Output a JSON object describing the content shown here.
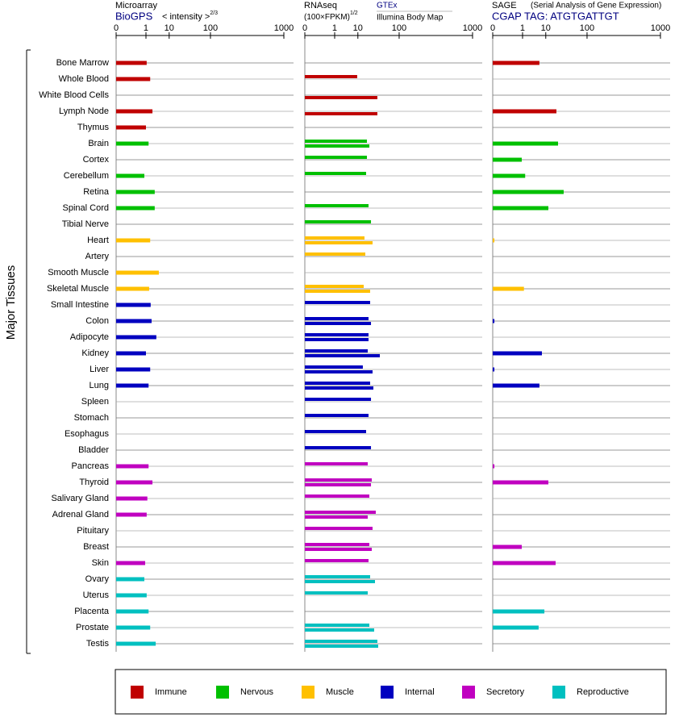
{
  "tissues": {
    "label": "Major Tissues",
    "categories": [
      "Bone Marrow",
      "Whole Blood",
      "White Blood Cells",
      "Lymph Node",
      "Thymus",
      "Brain",
      "Cortex",
      "Cerebellum",
      "Retina",
      "Spinal Cord",
      "Tibial Nerve",
      "Heart",
      "Artery",
      "Smooth Muscle",
      "Skeletal Muscle",
      "Small Intestine",
      "Colon",
      "Adipocyte",
      "Kidney",
      "Liver",
      "Lung",
      "Spleen",
      "Stomach",
      "Esophagus",
      "Bladder",
      "Pancreas",
      "Thyroid",
      "Salivary Gland",
      "Adrenal Gland",
      "Pituitary",
      "Breast",
      "Skin",
      "Ovary",
      "Uterus",
      "Placenta",
      "Prostate",
      "Testis"
    ],
    "group": [
      0,
      0,
      0,
      0,
      0,
      1,
      1,
      1,
      1,
      1,
      1,
      2,
      2,
      2,
      2,
      3,
      3,
      3,
      3,
      3,
      3,
      3,
      3,
      3,
      3,
      4,
      4,
      4,
      4,
      4,
      4,
      4,
      5,
      5,
      5,
      5,
      5
    ]
  },
  "groups": [
    {
      "name": "Immune",
      "color": "#c00000"
    },
    {
      "name": "Nervous",
      "color": "#00c000"
    },
    {
      "name": "Muscle",
      "color": "#ffc000"
    },
    {
      "name": "Internal",
      "color": "#0000c0"
    },
    {
      "name": "Secretory",
      "color": "#c000c0"
    },
    {
      "name": "Reproductive",
      "color": "#00c0c0"
    }
  ],
  "chart_data": [
    {
      "type": "bar",
      "title": "Microarray",
      "x_label": "< intensity >",
      "x_label_exponent": "2/3",
      "xlim": [
        0,
        1000
      ],
      "xticks": [
        0,
        1,
        10,
        100,
        1000
      ],
      "xscale": "power",
      "xexponent": 0.25,
      "series": [
        {
          "name": "BioGPS",
          "values": [
            1.1,
            1.7,
            null,
            2.2,
            1.0,
            1.4,
            null,
            0.8,
            2.8,
            2.8,
            null,
            1.7,
            null,
            4.2,
            1.5,
            1.8,
            2.0,
            3.3,
            1.0,
            1.7,
            1.4,
            null,
            null,
            null,
            null,
            1.4,
            2.2,
            1.2,
            1.1,
            null,
            null,
            0.9,
            0.8,
            1.1,
            1.4,
            1.7,
            3.1
          ]
        }
      ]
    },
    {
      "type": "bar",
      "title": "RNAseq",
      "x_label": "(100×FPKM)",
      "x_label_exponent": "1/2",
      "xlim": [
        0,
        1000
      ],
      "xticks": [
        0,
        1,
        10,
        100,
        1000
      ],
      "xscale": "power",
      "xexponent": 0.25,
      "series": [
        {
          "name": "GTEx",
          "values": [
            null,
            9.5,
            null,
            null,
            null,
            18.8,
            18.8,
            17.8,
            null,
            20.8,
            24.2,
            16,
            16.9,
            null,
            15.2,
            23,
            20.8,
            20.8,
            19.8,
            14.3,
            23,
            24.2,
            20.8,
            17.8,
            24.2,
            19.8,
            25.4,
            21.9,
            32,
            26.6,
            21.9,
            20.8,
            23,
            19.8,
            null,
            21.9,
            35
          ]
        },
        {
          "name": "Illumina Body Map",
          "values": [
            null,
            null,
            35,
            35,
            null,
            21.9,
            null,
            null,
            null,
            null,
            null,
            26.6,
            null,
            null,
            23,
            null,
            24.2,
            20.8,
            40,
            26.6,
            27.9,
            null,
            null,
            null,
            null,
            null,
            24.2,
            null,
            19.8,
            null,
            25.4,
            null,
            30.6,
            null,
            null,
            29.2,
            36.6
          ]
        }
      ]
    },
    {
      "type": "bar",
      "title": "SAGE",
      "subtitle": "(Serial Analysis of Gene Expression)",
      "xlim": [
        0,
        1000
      ],
      "xticks": [
        0,
        1,
        10,
        100,
        1000
      ],
      "xscale": "power",
      "xexponent": 0.25,
      "series": [
        {
          "name": "CGAP TAG: ATGTGATTGT",
          "values": [
            6.0,
            null,
            null,
            20.8,
            null,
            23,
            0.9,
            1.4,
            32,
            12.1,
            null,
            1e-05,
            null,
            null,
            1.2,
            null,
            1e-05,
            null,
            7.4,
            1e-05,
            6.0,
            null,
            null,
            null,
            null,
            1e-05,
            12.1,
            null,
            null,
            null,
            0.9,
            19.8,
            null,
            null,
            9.0,
            5.6,
            null
          ]
        }
      ]
    }
  ]
}
